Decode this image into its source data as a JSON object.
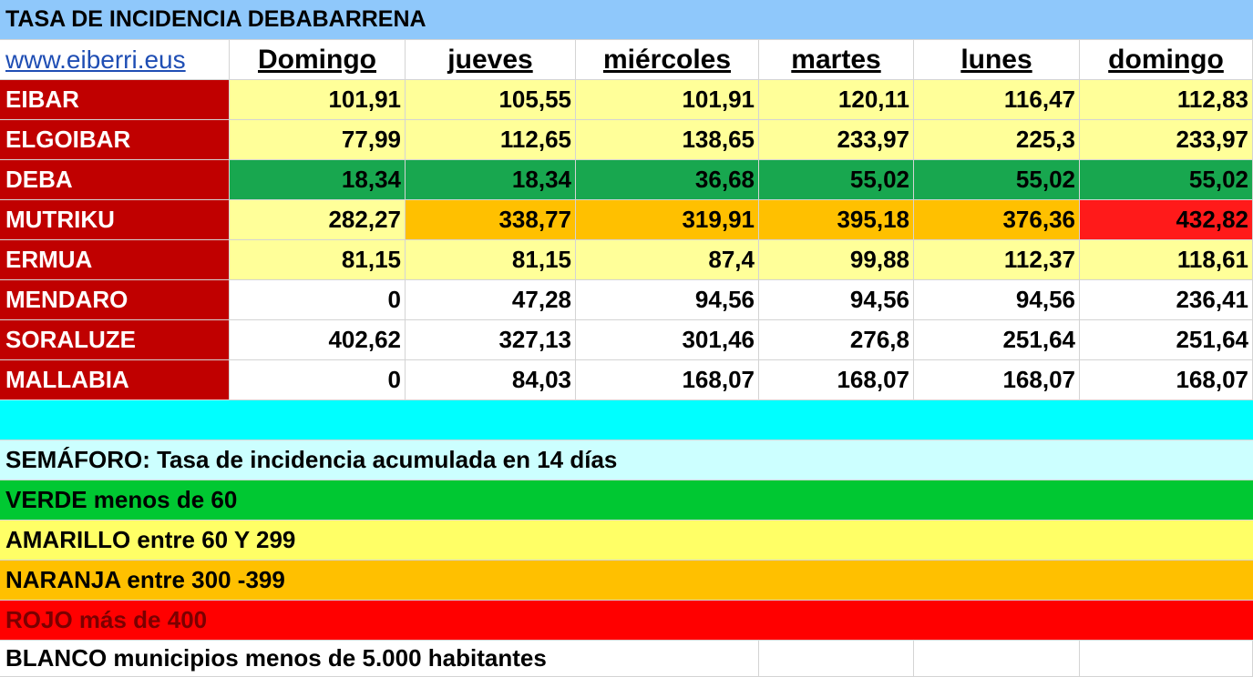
{
  "title": "TASA DE INCIDENCIA DEBABARRENA",
  "link": "www.eiberri.eus",
  "days": [
    "Domingo",
    "jueves",
    "miércoles",
    "martes",
    "lunes",
    "domingo"
  ],
  "rows": [
    {
      "municipio": "EIBAR",
      "values": [
        "101,91",
        "105,55",
        "101,91",
        "120,11",
        "116,47",
        "112,83"
      ]
    },
    {
      "municipio": "ELGOIBAR",
      "values": [
        "77,99",
        "112,65",
        "138,65",
        "233,97",
        "225,3",
        "233,97"
      ]
    },
    {
      "municipio": "DEBA",
      "values": [
        "18,34",
        "18,34",
        "36,68",
        "55,02",
        "55,02",
        "55,02"
      ]
    },
    {
      "municipio": "MUTRIKU",
      "values": [
        "282,27",
        "338,77",
        "319,91",
        "395,18",
        "376,36",
        "432,82"
      ]
    },
    {
      "municipio": "ERMUA",
      "values": [
        "81,15",
        "81,15",
        "87,4",
        "99,88",
        "112,37",
        "118,61"
      ]
    },
    {
      "municipio": "MENDARO",
      "values": [
        "0",
        "47,28",
        "94,56",
        "94,56",
        "94,56",
        "236,41"
      ]
    },
    {
      "municipio": "SORALUZE",
      "values": [
        "402,62",
        "327,13",
        "301,46",
        "276,8",
        "251,64",
        "251,64"
      ]
    },
    {
      "municipio": "MALLABIA",
      "values": [
        "0",
        "84,03",
        "168,07",
        "168,07",
        "168,07",
        "168,07"
      ]
    }
  ],
  "legend": {
    "title": "SEMÁFORO:  Tasa de incidencia acumulada en 14 días",
    "verde": "VERDE menos de 60",
    "amarillo": "AMARILLO entre 60 Y 299",
    "naranja": "NARANJA entre 300 -399",
    "rojo": "ROJO más de 400",
    "blanco": "BLANCO municipios menos de 5.000 habitantes"
  },
  "colors": {
    "title_bar": "#8fc8fb",
    "municipio": "#c00000",
    "verde": "#18a74f",
    "amarillo": "#ffff99",
    "naranja": "#ffc000",
    "rojo": "#ff1a1a",
    "spacer": "#00ffff",
    "legend_title": "#ccffff",
    "legend_verde": "#00c832",
    "legend_amarillo": "#ffff66"
  }
}
